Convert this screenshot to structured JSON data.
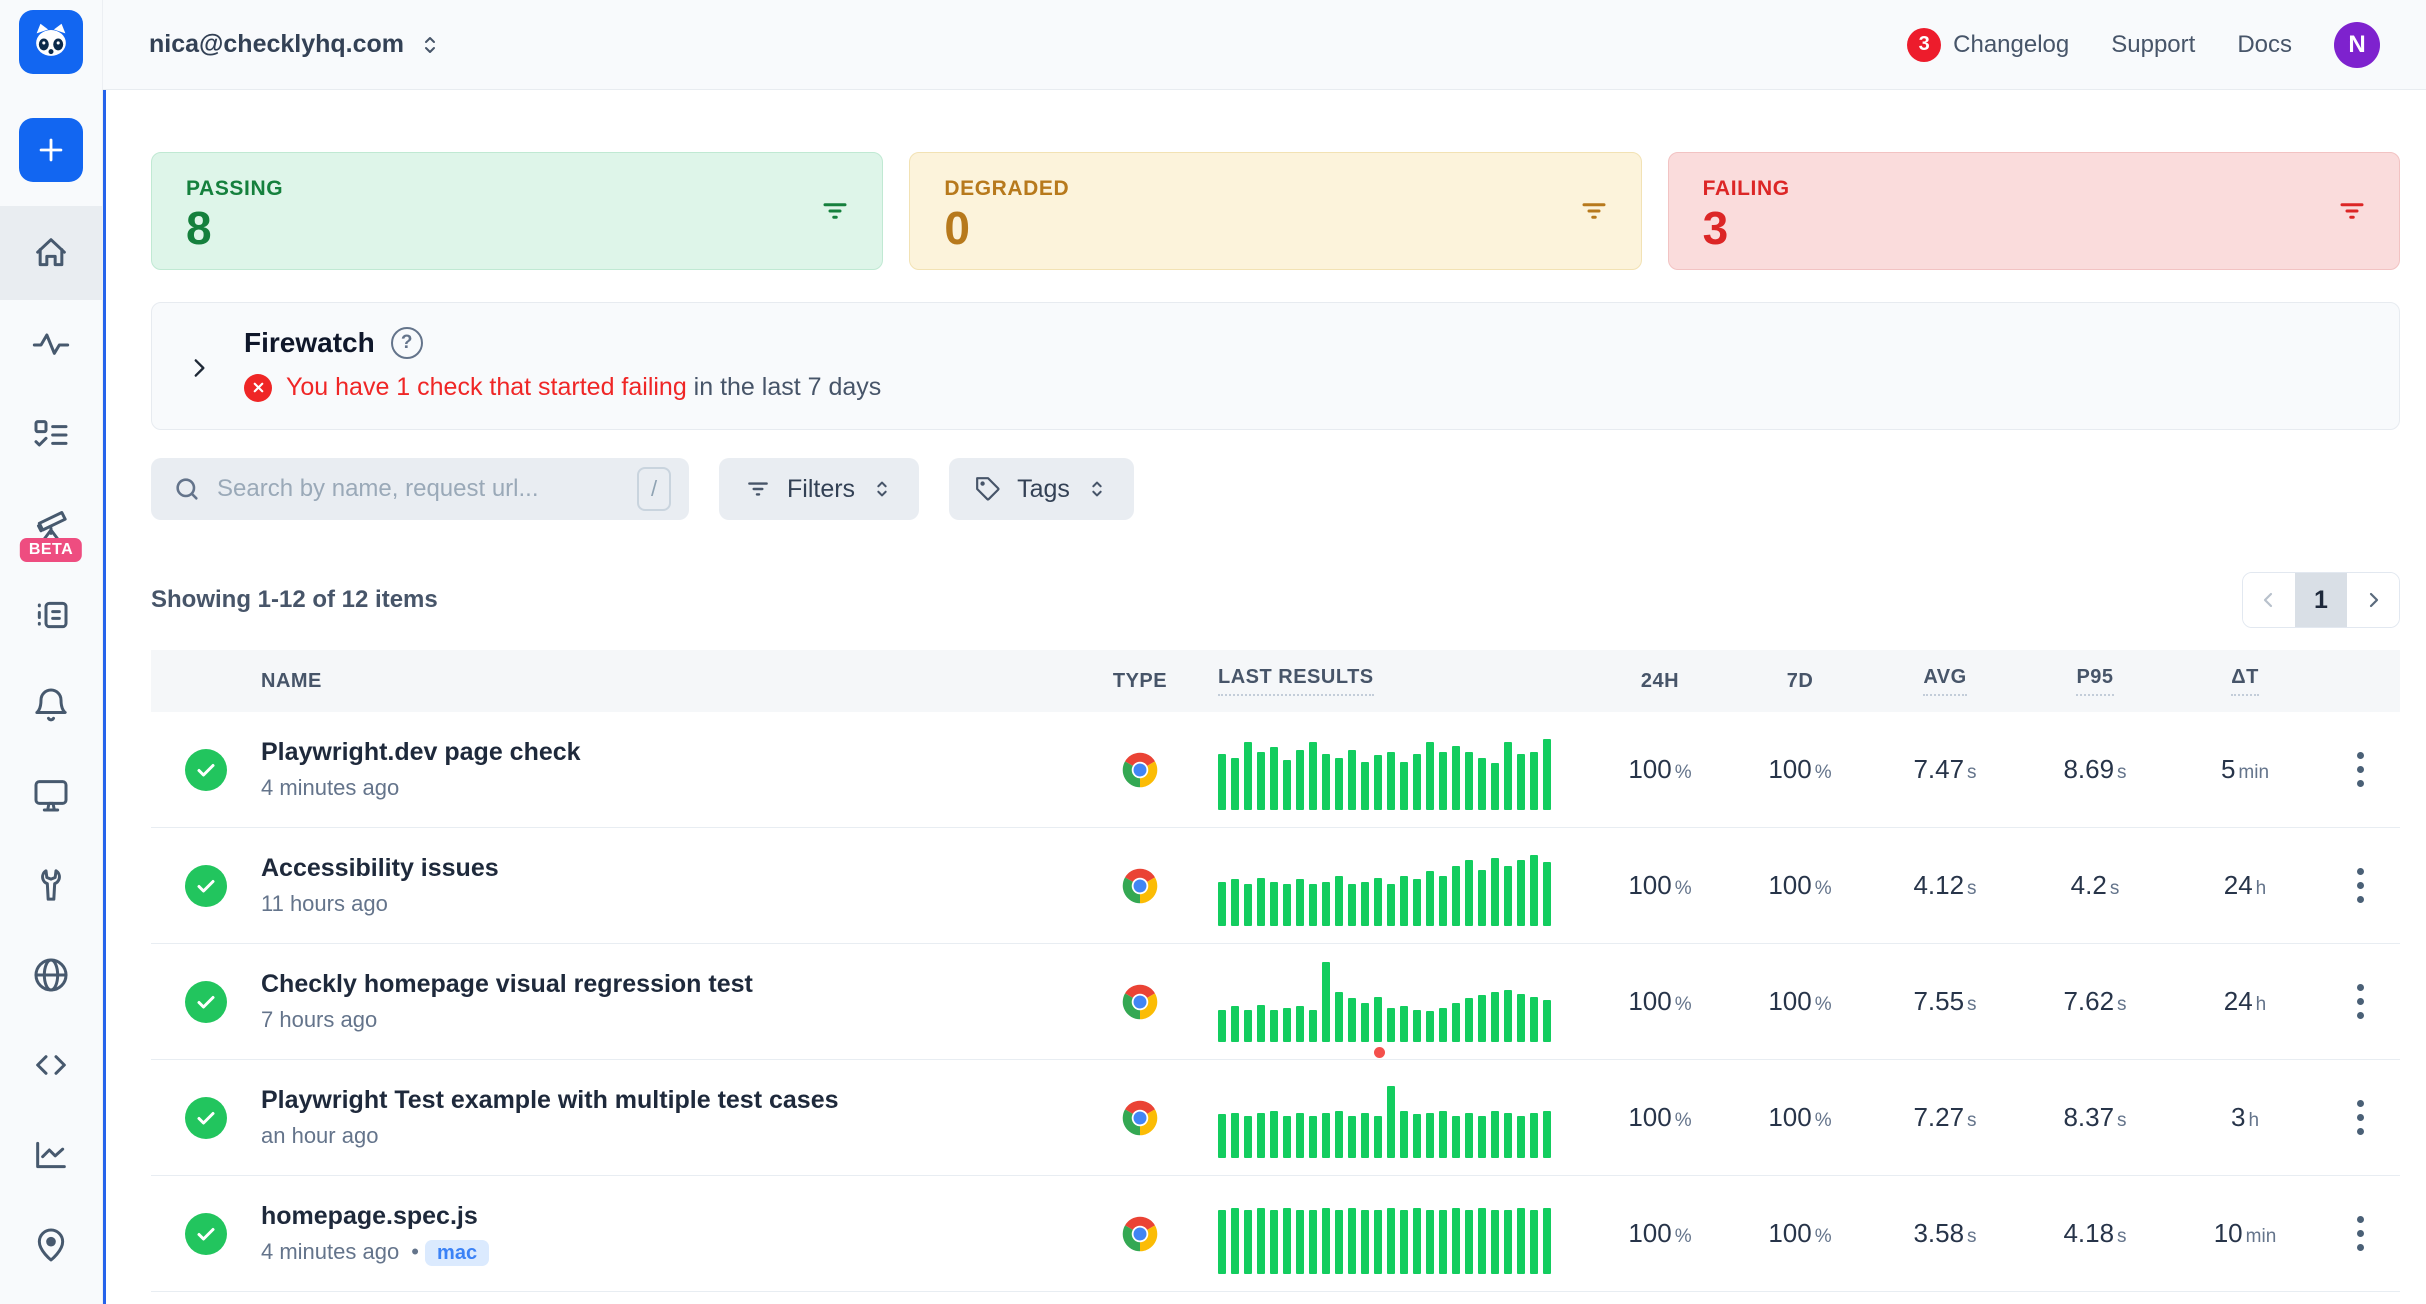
{
  "header": {
    "account_email": "nica@checklyhq.com",
    "changelog_badge": "3",
    "changelog_label": "Changelog",
    "support_label": "Support",
    "docs_label": "Docs",
    "avatar_initial": "N"
  },
  "sidebar": {
    "beta_label": "BETA",
    "icons": [
      "raccoon-logo",
      "plus",
      "home",
      "activity",
      "checklist",
      "telescope",
      "log",
      "bell",
      "monitor",
      "wrench",
      "globe",
      "code",
      "chart",
      "map-pin"
    ]
  },
  "status_cards": [
    {
      "label": "PASSING",
      "value": "8",
      "color": "#15803d",
      "bg": "#def5e9"
    },
    {
      "label": "DEGRADED",
      "value": "0",
      "color": "#b7791c",
      "bg": "#fcf3db"
    },
    {
      "label": "FAILING",
      "value": "3",
      "color": "#dc2626",
      "bg": "#fadcdc"
    }
  ],
  "firewatch": {
    "title": "Firewatch",
    "alert_strong": "You have 1 check that started failing",
    "alert_rest": " in the last 7 days"
  },
  "toolbar": {
    "search_placeholder": "Search by name, request url...",
    "search_value": "",
    "shortcut_key": "/",
    "filters_label": "Filters",
    "tags_label": "Tags"
  },
  "list_meta": {
    "summary": "Showing 1-12 of 12 items",
    "current_page": "1"
  },
  "table": {
    "columns": {
      "name": "NAME",
      "type": "TYPE",
      "results": "LAST RESULTS",
      "h24": "24H",
      "d7": "7D",
      "avg": "AVG",
      "p95": "P95",
      "dt": "ΔT"
    },
    "bar_color": "#13cd5f",
    "rows": [
      {
        "name": "Playwright.dev page check",
        "time": "4 minutes ago",
        "badge": null,
        "status": "passing",
        "type": "chrome",
        "h24": "100",
        "h24_unit": "%",
        "d7": "100",
        "d7_unit": "%",
        "avg": "7.47",
        "avg_unit": "s",
        "p95": "8.69",
        "p95_unit": "s",
        "dt": "5",
        "dt_unit": "min",
        "bars": [
          70,
          65,
          85,
          72,
          78,
          62,
          75,
          85,
          70,
          65,
          75,
          60,
          68,
          72,
          60,
          70,
          85,
          72,
          80,
          72,
          65,
          58,
          85,
          70,
          72,
          88
        ],
        "red_dot_index": null
      },
      {
        "name": "Accessibility issues",
        "time": "11 hours ago",
        "badge": null,
        "status": "passing",
        "type": "chrome",
        "h24": "100",
        "h24_unit": "%",
        "d7": "100",
        "d7_unit": "%",
        "avg": "4.12",
        "avg_unit": "s",
        "p95": "4.2",
        "p95_unit": "s",
        "dt": "24",
        "dt_unit": "h",
        "bars": [
          55,
          58,
          52,
          60,
          55,
          52,
          58,
          52,
          55,
          62,
          52,
          55,
          60,
          52,
          62,
          58,
          68,
          62,
          75,
          82,
          70,
          85,
          75,
          82,
          88,
          80
        ],
        "red_dot_index": null
      },
      {
        "name": "Checkly homepage visual regression test",
        "time": "7 hours ago",
        "badge": null,
        "status": "passing",
        "type": "chrome",
        "h24": "100",
        "h24_unit": "%",
        "d7": "100",
        "d7_unit": "%",
        "avg": "7.55",
        "avg_unit": "s",
        "p95": "7.62",
        "p95_unit": "s",
        "dt": "24",
        "dt_unit": "h",
        "bars": [
          40,
          44,
          40,
          46,
          40,
          42,
          45,
          40,
          100,
          62,
          54,
          48,
          56,
          42,
          45,
          40,
          38,
          42,
          48,
          54,
          58,
          62,
          64,
          60,
          56,
          52
        ],
        "red_dot_index": 12
      },
      {
        "name": "Playwright Test example with multiple test cases",
        "time": "an hour ago",
        "badge": null,
        "status": "passing",
        "type": "chrome",
        "h24": "100",
        "h24_unit": "%",
        "d7": "100",
        "d7_unit": "%",
        "avg": "7.27",
        "avg_unit": "s",
        "p95": "8.37",
        "p95_unit": "s",
        "dt": "3",
        "dt_unit": "h",
        "bars": [
          54,
          56,
          52,
          56,
          58,
          52,
          56,
          52,
          56,
          58,
          52,
          56,
          52,
          90,
          58,
          54,
          56,
          58,
          52,
          56,
          52,
          58,
          56,
          52,
          56,
          58
        ],
        "red_dot_index": null
      },
      {
        "name": "homepage.spec.js",
        "time": "4 minutes ago",
        "badge": "mac",
        "status": "passing",
        "type": "chrome",
        "h24": "100",
        "h24_unit": "%",
        "d7": "100",
        "d7_unit": "%",
        "avg": "3.58",
        "avg_unit": "s",
        "p95": "4.18",
        "p95_unit": "s",
        "dt": "10",
        "dt_unit": "min",
        "bars": [
          80,
          82,
          80,
          82,
          80,
          82,
          80,
          80,
          82,
          80,
          82,
          80,
          80,
          82,
          80,
          82,
          80,
          80,
          82,
          80,
          82,
          80,
          80,
          82,
          80,
          82
        ],
        "red_dot_index": null
      }
    ]
  },
  "colors": {
    "brand_blue": "#1266f1",
    "accent_line": "#2563eb",
    "pass_green": "#22c55e",
    "bar_green": "#13cd5f",
    "alert_red": "#ef2626",
    "badge_red": "#ed1c2c",
    "avatar_purple": "#7e22ce",
    "beta_pink": "#ee4d80"
  }
}
